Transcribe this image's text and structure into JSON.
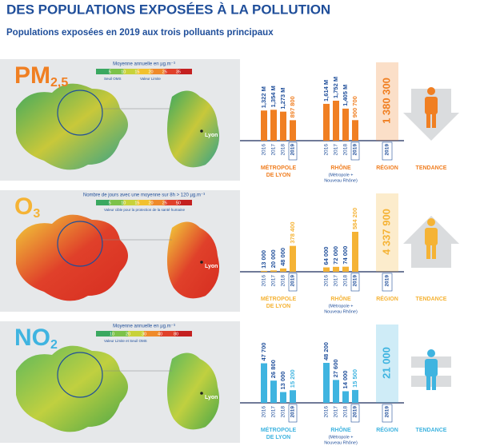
{
  "title": "DES POPULATIONS EXPOSÉES À LA POLLUTION",
  "subtitle": "Populations exposées en 2019 aux trois polluants principaux",
  "years": [
    "2016",
    "2017",
    "2018",
    "2019"
  ],
  "tendency": "TENDANCE",
  "sections": [
    {
      "pollutant": "PM",
      "pollutant_sub": "2,5",
      "color": "#f07f22",
      "trend": "down",
      "legend_title": "Moyenne annuelle en µg.m⁻³",
      "legend_scale": [
        "5",
        "10",
        "15",
        "20",
        "25",
        "35"
      ],
      "legend_notes": [
        "Seuil OMS",
        "Valeur Limite"
      ],
      "map_label": "Lyon",
      "groups": [
        {
          "name": "MÉTROPOLE",
          "name2": "DE LYON",
          "values": [
            1322000,
            1354000,
            1273000,
            897800
          ],
          "value_labels": [
            "1,322 M",
            "1,354 M",
            "1,273 M",
            "897 800"
          ]
        },
        {
          "name": "RHÔNE",
          "name2": "(Métropole +",
          "name3": "Nouveau Rhône)",
          "values": [
            1614000,
            1752000,
            1405000,
            900700
          ],
          "value_labels": [
            "1,614 M",
            "1,752 M",
            "1,405 M",
            "900 700"
          ]
        }
      ],
      "region": {
        "name": "RÉGION",
        "value": 1380300,
        "value_label": "1 380 300"
      }
    },
    {
      "pollutant": "O",
      "pollutant_sub": "3",
      "color": "#f5b335",
      "trend": "up",
      "legend_title": "Nombre de jours avec une moyenne sur 8h > 120 µg.m⁻³",
      "legend_scale": [
        "5",
        "10",
        "15",
        "20",
        "25",
        "50"
      ],
      "legend_notes": [
        "Valeur cible pour la protection de la santé humaine"
      ],
      "map_label": "Lyon",
      "groups": [
        {
          "name": "MÉTROPOLE",
          "name2": "DE LYON",
          "values": [
            13000,
            20000,
            48000,
            378400
          ],
          "value_labels": [
            "13 000",
            "20 000",
            "48 000",
            "378 400"
          ]
        },
        {
          "name": "RHÔNE",
          "name2": "(Métropole +",
          "name3": "Nouveau Rhône)",
          "values": [
            64000,
            72000,
            74000,
            584200
          ],
          "value_labels": [
            "64 000",
            "72 000",
            "74 000",
            "584 200"
          ]
        }
      ],
      "region": {
        "name": "RÉGION",
        "value": 4337900,
        "value_label": "4 337 900"
      }
    },
    {
      "pollutant": "NO",
      "pollutant_sub": "2",
      "color": "#3fb4e0",
      "trend": "equal",
      "legend_title": "Moyenne annuelle en µg.m⁻³",
      "legend_scale": [
        "10",
        "20",
        "30",
        "40",
        "80"
      ],
      "legend_notes": [
        "Valeur Limite et Seuil OMS"
      ],
      "map_label": "Lyon",
      "groups": [
        {
          "name": "MÉTROPOLE",
          "name2": "DE LYON",
          "values": [
            47700,
            26800,
            13000,
            15200
          ],
          "value_labels": [
            "47 700",
            "26 800",
            "13 000",
            "15 200"
          ]
        },
        {
          "name": "RHÔNE",
          "name2": "(Métropole +",
          "name3": "Nouveau Rhône)",
          "values": [
            48200,
            27600,
            14000,
            15500
          ],
          "value_labels": [
            "48 200",
            "27 600",
            "14 000",
            "15 500"
          ]
        }
      ],
      "region": {
        "name": "RÉGION",
        "value": 21000,
        "value_label": "21 000"
      }
    }
  ]
}
